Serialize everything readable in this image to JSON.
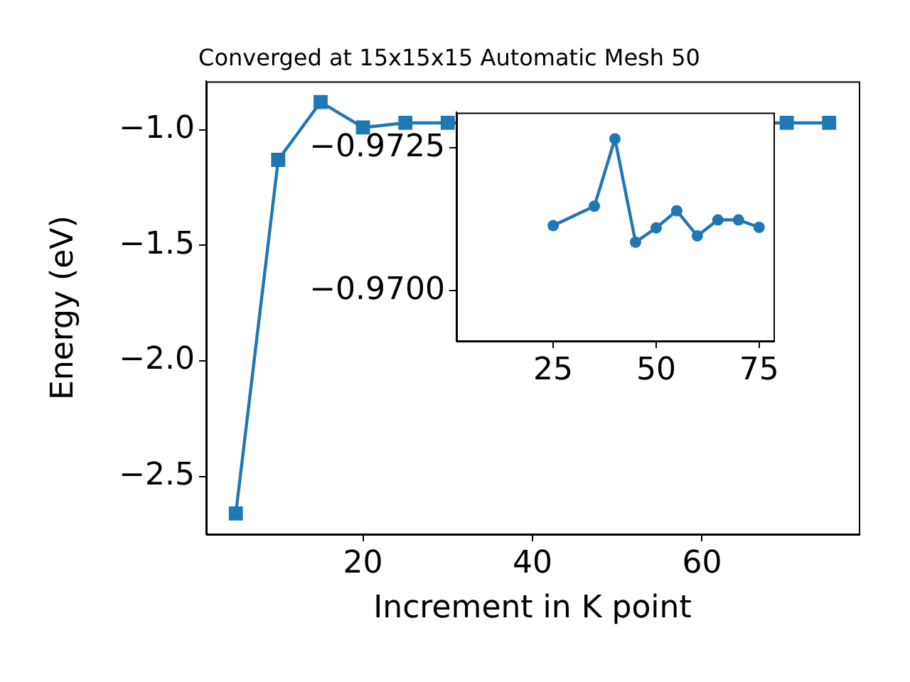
{
  "chart_data": [
    {
      "type": "line",
      "title": "Converged at 15x15x15 Automatic Mesh 50",
      "xlabel": "Increment in K point",
      "ylabel": "Energy (eV)",
      "x": [
        5,
        10,
        15,
        20,
        25,
        30,
        35,
        40,
        45,
        50,
        55,
        60,
        65,
        70,
        75
      ],
      "series": [
        {
          "color": "#1f77b4",
          "values": [
            -2.66,
            -1.13,
            -0.88,
            -0.99,
            -0.97,
            -0.97,
            null,
            null,
            null,
            null,
            null,
            null,
            null,
            -0.97,
            -0.97
          ]
        }
      ],
      "xlim": [
        1.5,
        78.5
      ],
      "ylim": [
        -2.75,
        -0.79
      ],
      "xticks": [
        20,
        40,
        60
      ],
      "yticks": [
        {
          "value": -2.5,
          "label": "−2.5"
        },
        {
          "value": -2,
          "label": "−2.0"
        },
        {
          "value": -1.5,
          "label": "−1.5"
        },
        {
          "value": -1,
          "label": "−1.0"
        }
      ],
      "marker": "square",
      "line_style": "solid",
      "legend": false,
      "grid": false
    },
    {
      "type": "line",
      "x": [
        25,
        35,
        40,
        45,
        50,
        55,
        60,
        65,
        70,
        75
      ],
      "series": [
        {
          "color": "#1f77b4",
          "values": [
            -0.97114,
            -0.97148,
            -0.97266,
            -0.97085,
            -0.9711,
            -0.9714,
            -0.97096,
            -0.97124,
            -0.97124,
            -0.97111
          ]
        }
      ],
      "xlim": [
        1.5,
        78.5
      ],
      "ylim": [
        -0.96912,
        -0.97312
      ],
      "xticks": [
        25,
        50,
        75
      ],
      "yticks": [
        {
          "value": -0.9725,
          "label": "−0.9725"
        },
        {
          "value": -0.97,
          "label": "−0.9700"
        }
      ],
      "marker": "circle",
      "line_style": "solid",
      "legend": false,
      "grid": false
    }
  ]
}
